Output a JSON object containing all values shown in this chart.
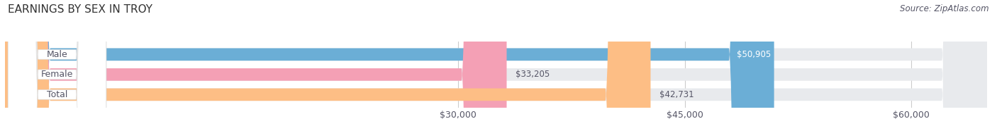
{
  "title": "EARNINGS BY SEX IN TROY",
  "source": "Source: ZipAtlas.com",
  "categories": [
    "Male",
    "Female",
    "Total"
  ],
  "values": [
    50905,
    33205,
    42731
  ],
  "bar_colors": [
    "#6baed6",
    "#f4a0b5",
    "#fdbe85"
  ],
  "bar_bg_color": "#e8eaed",
  "xmin": 0,
  "xmax": 65000,
  "xticks": [
    30000,
    45000,
    60000
  ],
  "xtick_labels": [
    "$30,000",
    "$45,000",
    "$60,000"
  ],
  "title_fontsize": 11,
  "label_fontsize": 9,
  "value_fontsize": 8.5,
  "source_fontsize": 8.5,
  "bar_height": 0.62,
  "bg_color": "#ffffff",
  "text_color": "#555566",
  "title_color": "#333333",
  "grid_color": "#cccccc",
  "label_pill_color": "#ffffff",
  "label_pill_edge": "#dddddd",
  "value_label_inside_color": "#ffffff",
  "value_label_outside_color": "#555566"
}
